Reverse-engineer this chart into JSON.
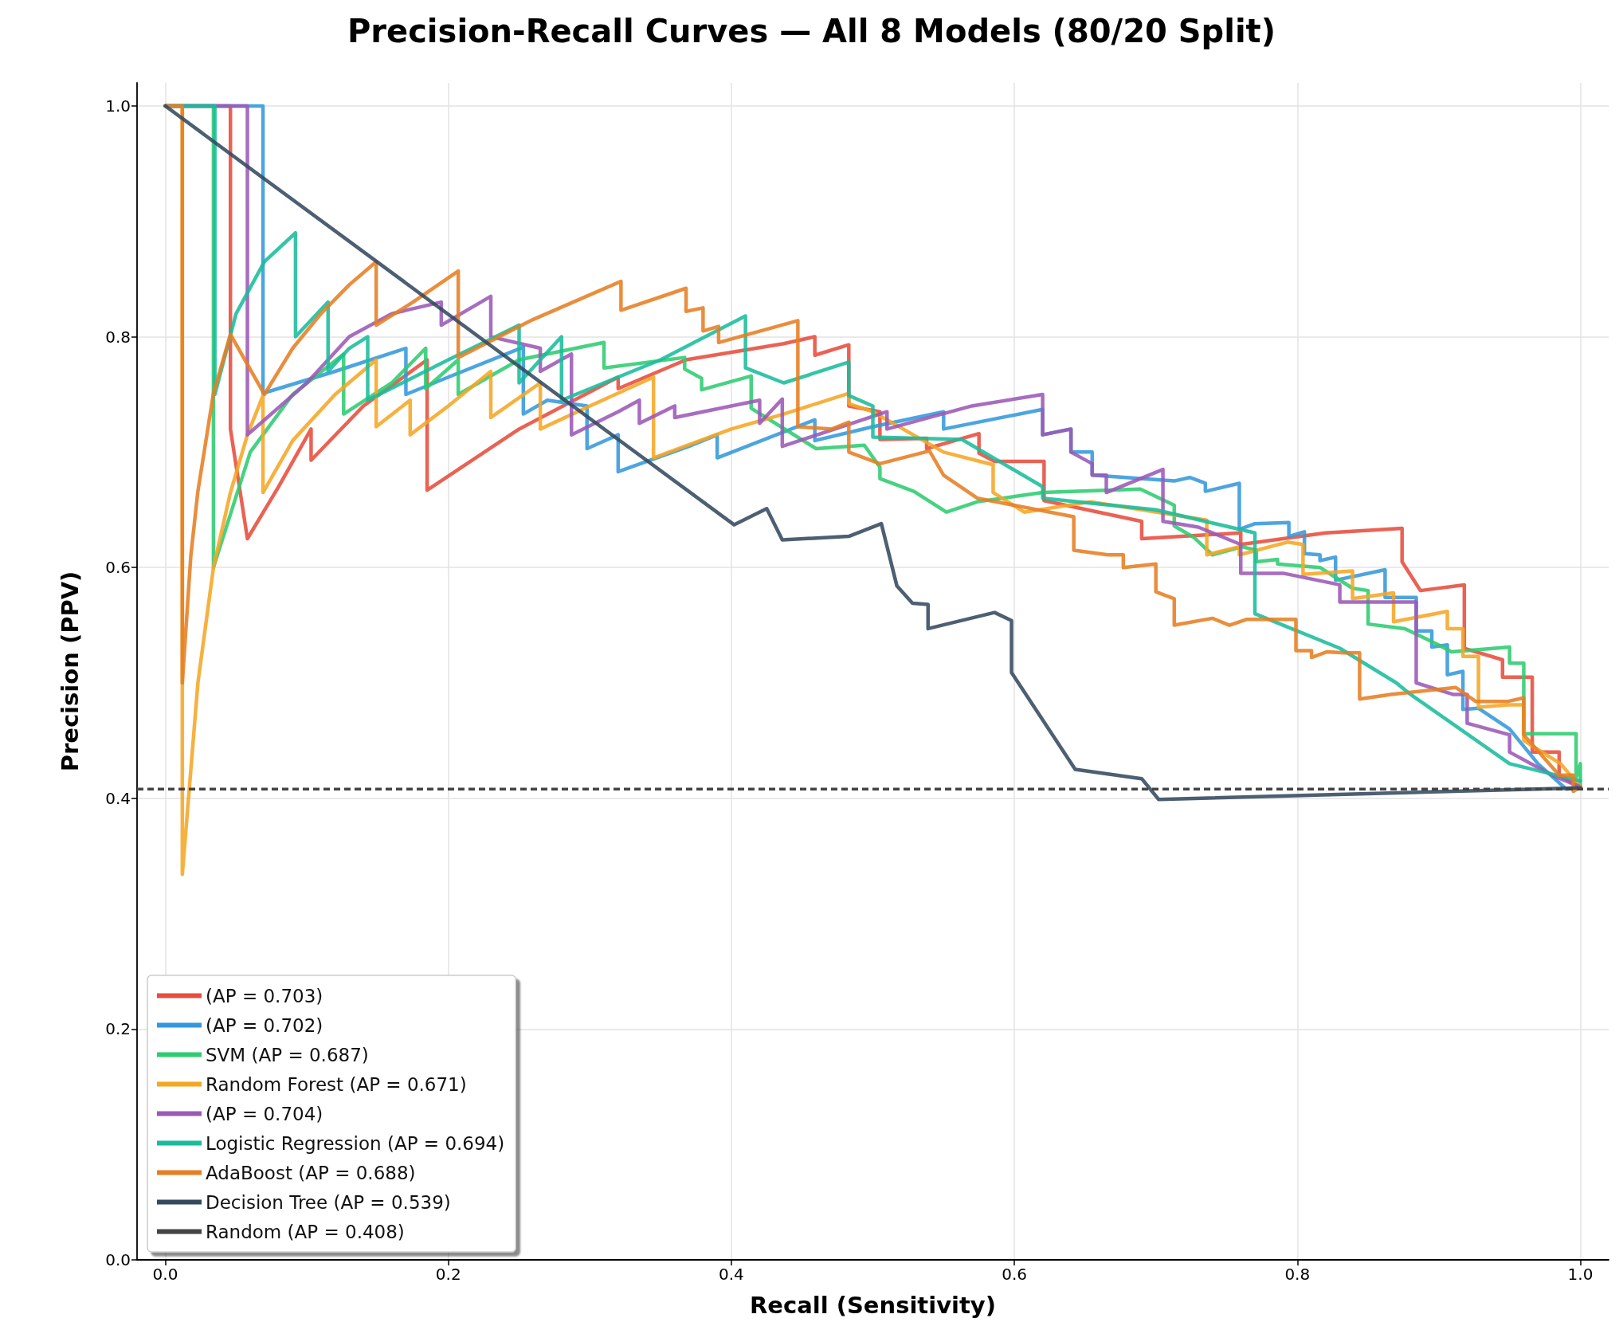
{
  "chart_data": {
    "type": "line",
    "title": "Precision-Recall Curves — All 8 Models (80/20 Split)",
    "xlabel": "Recall (Sensitivity)",
    "ylabel": "Precision (PPV)",
    "xlim": [
      -0.02,
      1.02
    ],
    "ylim": [
      0,
      1.02
    ],
    "xticks": [
      {
        "value": 0,
        "label": "0.0"
      },
      {
        "value": 0.2,
        "label": "0.2"
      },
      {
        "value": 0.4,
        "label": "0.4"
      },
      {
        "value": 0.6,
        "label": "0.6"
      },
      {
        "value": 0.8,
        "label": "0.8"
      },
      {
        "value": 1,
        "label": "1.0"
      }
    ],
    "yticks": [
      {
        "value": 0,
        "label": "0.0"
      },
      {
        "value": 0.2,
        "label": "0.2"
      },
      {
        "value": 0.4,
        "label": "0.4"
      },
      {
        "value": 0.6,
        "label": "0.6"
      },
      {
        "value": 0.8,
        "label": "0.8"
      },
      {
        "value": 1,
        "label": "1.0"
      }
    ],
    "grid": true,
    "legend": "bottom left",
    "series": [
      {
        "name": "(AP = 0.703)",
        "color": "#e74c3c",
        "x": [
          0,
          0.046,
          0.046,
          0.058,
          0.08,
          0.103,
          0.103,
          0.14,
          0.185,
          0.185,
          0.25,
          0.32,
          0.32,
          0.368,
          0.437,
          0.459,
          0.459,
          0.483,
          0.483,
          0.505,
          0.505,
          0.538,
          0.538,
          0.575,
          0.575,
          0.586,
          0.621,
          0.621,
          0.69,
          0.69,
          0.76,
          0.76,
          0.82,
          0.874,
          0.874,
          0.887,
          0.918,
          0.918,
          0.945,
          0.945,
          0.966,
          0.966,
          0.985,
          0.985,
          1.0
        ],
        "values": [
          1,
          1,
          0.72,
          0.625,
          0.67,
          0.72,
          0.693,
          0.74,
          0.78,
          0.667,
          0.72,
          0.765,
          0.755,
          0.78,
          0.794,
          0.8,
          0.784,
          0.793,
          0.74,
          0.735,
          0.711,
          0.712,
          0.703,
          0.716,
          0.699,
          0.692,
          0.692,
          0.658,
          0.64,
          0.625,
          0.63,
          0.62,
          0.63,
          0.634,
          0.605,
          0.58,
          0.585,
          0.53,
          0.52,
          0.505,
          0.505,
          0.44,
          0.44,
          0.42,
          0.41
        ]
      },
      {
        "name": "(AP = 0.702)",
        "color": "#3498db",
        "x": [
          0,
          0.069,
          0.069,
          0.12,
          0.17,
          0.17,
          0.2,
          0.253,
          0.253,
          0.27,
          0.298,
          0.298,
          0.32,
          0.32,
          0.37,
          0.39,
          0.39,
          0.459,
          0.459,
          0.5,
          0.55,
          0.55,
          0.62,
          0.62,
          0.64,
          0.64,
          0.655,
          0.655,
          0.713,
          0.724,
          0.735,
          0.735,
          0.759,
          0.759,
          0.77,
          0.794,
          0.794,
          0.805,
          0.805,
          0.816,
          0.816,
          0.827,
          0.827,
          0.862,
          0.862,
          0.884,
          0.884,
          0.895,
          0.895,
          0.906,
          0.906,
          0.917,
          0.917,
          0.928,
          0.95,
          0.97,
          0.99,
          1.0
        ],
        "values": [
          1,
          1,
          0.751,
          0.77,
          0.79,
          0.75,
          0.765,
          0.791,
          0.733,
          0.745,
          0.74,
          0.703,
          0.715,
          0.683,
          0.705,
          0.715,
          0.695,
          0.728,
          0.71,
          0.722,
          0.735,
          0.72,
          0.737,
          0.715,
          0.72,
          0.7,
          0.7,
          0.68,
          0.675,
          0.678,
          0.673,
          0.666,
          0.673,
          0.633,
          0.638,
          0.639,
          0.627,
          0.631,
          0.612,
          0.611,
          0.606,
          0.609,
          0.589,
          0.598,
          0.574,
          0.574,
          0.545,
          0.545,
          0.531,
          0.533,
          0.507,
          0.51,
          0.477,
          0.478,
          0.46,
          0.43,
          0.408,
          0.41
        ]
      },
      {
        "name": "SVM (AP = 0.687)",
        "color": "#2ecc71",
        "x": [
          0,
          0.034,
          0.034,
          0.06,
          0.09,
          0.126,
          0.126,
          0.16,
          0.184,
          0.184,
          0.207,
          0.207,
          0.25,
          0.31,
          0.31,
          0.367,
          0.367,
          0.379,
          0.379,
          0.414,
          0.414,
          0.46,
          0.494,
          0.505,
          0.505,
          0.529,
          0.552,
          0.574,
          0.62,
          0.689,
          0.713,
          0.713,
          0.727,
          0.74,
          0.761,
          0.771,
          0.771,
          0.786,
          0.786,
          0.816,
          0.839,
          0.85,
          0.85,
          0.876,
          0.898,
          0.909,
          0.95,
          0.95,
          0.96,
          0.96,
          0.986,
          0.997,
          0.997,
          1.0,
          1.0
        ],
        "values": [
          1,
          1,
          0.6,
          0.7,
          0.75,
          0.785,
          0.733,
          0.76,
          0.79,
          0.755,
          0.78,
          0.75,
          0.78,
          0.795,
          0.773,
          0.782,
          0.772,
          0.764,
          0.754,
          0.766,
          0.738,
          0.703,
          0.706,
          0.687,
          0.677,
          0.666,
          0.648,
          0.657,
          0.665,
          0.668,
          0.654,
          0.636,
          0.626,
          0.611,
          0.618,
          0.615,
          0.605,
          0.607,
          0.603,
          0.6,
          0.582,
          0.58,
          0.551,
          0.547,
          0.534,
          0.527,
          0.531,
          0.517,
          0.517,
          0.456,
          0.456,
          0.456,
          0.418,
          0.43,
          0.41
        ]
      },
      {
        "name": "Random Forest (AP = 0.671)",
        "color": "#f5a623",
        "x": [
          0,
          0.012,
          0.012,
          0.023,
          0.034,
          0.046,
          0.058,
          0.069,
          0.069,
          0.09,
          0.12,
          0.149,
          0.149,
          0.173,
          0.173,
          0.2,
          0.23,
          0.23,
          0.265,
          0.265,
          0.3,
          0.345,
          0.345,
          0.4,
          0.437,
          0.483,
          0.483,
          0.5,
          0.55,
          0.585,
          0.585,
          0.607,
          0.654,
          0.736,
          0.736,
          0.759,
          0.759,
          0.793,
          0.804,
          0.804,
          0.839,
          0.839,
          0.868,
          0.868,
          0.906,
          0.906,
          0.917,
          0.917,
          0.928,
          0.928,
          0.949,
          0.96,
          0.96,
          0.986,
          1.0
        ],
        "values": [
          1,
          1,
          0.334,
          0.5,
          0.6,
          0.665,
          0.715,
          0.749,
          0.665,
          0.71,
          0.75,
          0.78,
          0.722,
          0.745,
          0.715,
          0.74,
          0.77,
          0.73,
          0.76,
          0.72,
          0.74,
          0.765,
          0.695,
          0.72,
          0.733,
          0.751,
          0.742,
          0.735,
          0.7,
          0.689,
          0.665,
          0.648,
          0.657,
          0.641,
          0.611,
          0.618,
          0.611,
          0.622,
          0.62,
          0.594,
          0.597,
          0.573,
          0.578,
          0.553,
          0.562,
          0.547,
          0.547,
          0.523,
          0.523,
          0.479,
          0.481,
          0.481,
          0.45,
          0.43,
          0.41
        ]
      },
      {
        "name": "(AP = 0.704)",
        "color": "#9b59b6",
        "x": [
          0,
          0.058,
          0.058,
          0.1,
          0.13,
          0.16,
          0.195,
          0.195,
          0.23,
          0.23,
          0.265,
          0.265,
          0.287,
          0.287,
          0.32,
          0.335,
          0.335,
          0.36,
          0.36,
          0.42,
          0.42,
          0.436,
          0.436,
          0.51,
          0.51,
          0.57,
          0.62,
          0.62,
          0.64,
          0.64,
          0.655,
          0.655,
          0.665,
          0.665,
          0.705,
          0.705,
          0.73,
          0.76,
          0.76,
          0.79,
          0.83,
          0.83,
          0.884,
          0.884,
          0.91,
          0.92,
          0.92,
          0.95,
          0.95,
          0.98,
          1.0
        ],
        "values": [
          1,
          1,
          0.715,
          0.76,
          0.8,
          0.82,
          0.83,
          0.81,
          0.835,
          0.8,
          0.79,
          0.77,
          0.785,
          0.715,
          0.735,
          0.745,
          0.725,
          0.74,
          0.73,
          0.745,
          0.725,
          0.746,
          0.705,
          0.735,
          0.72,
          0.74,
          0.75,
          0.715,
          0.72,
          0.7,
          0.69,
          0.68,
          0.68,
          0.665,
          0.685,
          0.64,
          0.635,
          0.62,
          0.595,
          0.595,
          0.585,
          0.57,
          0.57,
          0.5,
          0.49,
          0.49,
          0.465,
          0.455,
          0.44,
          0.42,
          0.41
        ]
      },
      {
        "name": "Logistic Regression (AP = 0.694)",
        "color": "#1abc9c",
        "x": [
          0,
          0.035,
          0.035,
          0.05,
          0.07,
          0.092,
          0.092,
          0.115,
          0.115,
          0.13,
          0.143,
          0.143,
          0.2,
          0.25,
          0.25,
          0.28,
          0.28,
          0.35,
          0.41,
          0.41,
          0.437,
          0.483,
          0.483,
          0.5,
          0.5,
          0.563,
          0.62,
          0.62,
          0.7,
          0.77,
          0.77,
          0.79,
          0.83,
          0.87,
          0.88,
          0.95,
          1.0
        ],
        "values": [
          1,
          1,
          0.75,
          0.82,
          0.865,
          0.89,
          0.8,
          0.83,
          0.77,
          0.79,
          0.8,
          0.745,
          0.78,
          0.81,
          0.76,
          0.8,
          0.745,
          0.78,
          0.818,
          0.773,
          0.76,
          0.778,
          0.749,
          0.74,
          0.713,
          0.711,
          0.67,
          0.66,
          0.65,
          0.63,
          0.56,
          0.55,
          0.53,
          0.5,
          0.49,
          0.43,
          0.415
        ]
      },
      {
        "name": "AdaBoost (AP = 0.688)",
        "color": "#e67e22",
        "x": [
          0,
          0.012,
          0.012,
          0.018,
          0.023,
          0.034,
          0.046,
          0.07,
          0.09,
          0.11,
          0.13,
          0.149,
          0.149,
          0.175,
          0.207,
          0.207,
          0.26,
          0.322,
          0.322,
          0.368,
          0.368,
          0.38,
          0.38,
          0.391,
          0.391,
          0.447,
          0.447,
          0.471,
          0.483,
          0.483,
          0.505,
          0.54,
          0.55,
          0.574,
          0.642,
          0.642,
          0.666,
          0.677,
          0.677,
          0.7,
          0.7,
          0.713,
          0.713,
          0.74,
          0.752,
          0.764,
          0.799,
          0.799,
          0.81,
          0.81,
          0.821,
          0.833,
          0.844,
          0.844,
          0.866,
          0.912,
          0.926,
          0.949,
          0.96,
          0.96,
          0.985,
          0.995,
          0.995,
          1.0
        ],
        "values": [
          1,
          1,
          0.5,
          0.61,
          0.666,
          0.751,
          0.802,
          0.75,
          0.79,
          0.82,
          0.845,
          0.865,
          0.81,
          0.83,
          0.857,
          0.782,
          0.815,
          0.848,
          0.823,
          0.842,
          0.822,
          0.825,
          0.805,
          0.809,
          0.795,
          0.814,
          0.722,
          0.72,
          0.726,
          0.7,
          0.69,
          0.701,
          0.68,
          0.66,
          0.644,
          0.615,
          0.611,
          0.611,
          0.6,
          0.603,
          0.579,
          0.573,
          0.55,
          0.556,
          0.55,
          0.555,
          0.555,
          0.528,
          0.528,
          0.522,
          0.527,
          0.526,
          0.526,
          0.486,
          0.49,
          0.496,
          0.484,
          0.484,
          0.487,
          0.455,
          0.42,
          0.42,
          0.406,
          0.41
        ]
      },
      {
        "name": "Decision Tree (AP = 0.539)",
        "color": "#34495e",
        "x": [
          0,
          0.402,
          0.425,
          0.436,
          0.483,
          0.506,
          0.517,
          0.528,
          0.539,
          0.539,
          0.586,
          0.598,
          0.598,
          0.643,
          0.69,
          0.702,
          1.0
        ],
        "values": [
          1,
          0.637,
          0.651,
          0.624,
          0.627,
          0.638,
          0.584,
          0.569,
          0.568,
          0.547,
          0.561,
          0.554,
          0.509,
          0.425,
          0.417,
          0.399,
          0.409
        ]
      }
    ],
    "ref_lines": [
      {
        "axis": "y",
        "value": 0.408,
        "label": "Random (AP = 0.408)",
        "color": "#444444",
        "line_style": "dashed"
      }
    ]
  }
}
